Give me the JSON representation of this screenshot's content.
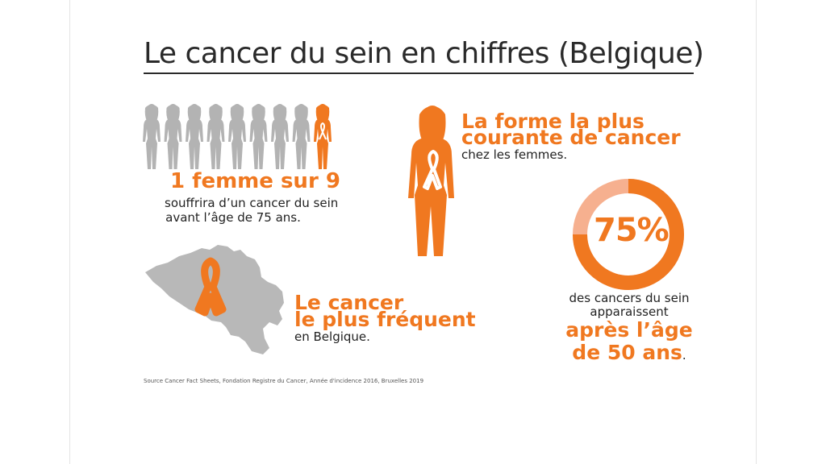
{
  "title": "Le cancer du sein en chiffres (Belgique)",
  "women": {
    "count": 9,
    "highlighted_index": 8,
    "headline": "1 femme sur 9",
    "sub_line1": "souffrira d’un cancer du sein",
    "sub_line2": "avant l’âge de 75 ans."
  },
  "common_form": {
    "line1": "La forme la plus",
    "line2": "courante de cancer",
    "line3": "chez les femmes."
  },
  "age_stat": {
    "percent_label": "75%",
    "percent_value": 75,
    "line1": "des cancers du sein",
    "line2": "apparaissent",
    "line3": "après l’âge",
    "line4": "de 50 ans",
    "line4_suffix": "."
  },
  "belgium": {
    "line1": "Le cancer",
    "line2": "le plus fréquent",
    "line3": "en Belgique."
  },
  "source": "Source Cancer Fact Sheets, Fondation Registre du Cancer, Année d'incidence 2016, Bruxelles 2019",
  "colors": {
    "accent": "#f07820",
    "accent_light": "#f6b08f",
    "grey": "#b3b3b3",
    "text": "#222222"
  }
}
